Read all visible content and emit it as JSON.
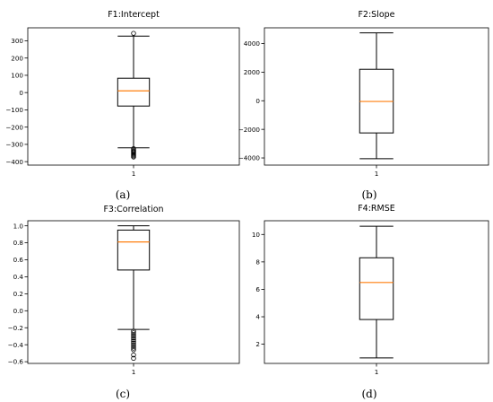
{
  "chart_data": [
    {
      "type": "box",
      "title": "F1:Intercept",
      "panel_label": "(a)",
      "categories": [
        "1"
      ],
      "ylim": [
        -420,
        375
      ],
      "yticks": [
        -400,
        -300,
        -200,
        -100,
        0,
        100,
        200,
        300
      ],
      "ytick_labels": [
        "−400",
        "−300",
        "−200",
        "−100",
        "0",
        "100",
        "200",
        "300"
      ],
      "box": {
        "whisker_low": -320,
        "q1": -78,
        "median": 10,
        "q3": 83,
        "whisker_high": 327
      },
      "outliers": [
        343,
        -325,
        -332,
        -338,
        -343,
        -349,
        -355,
        -361,
        -367,
        -373
      ],
      "colors": {
        "median": "#ff7f0e",
        "box": "#000000"
      }
    },
    {
      "type": "box",
      "title": "F2:Slope",
      "panel_label": "(b)",
      "categories": [
        "1"
      ],
      "ylim": [
        -4500,
        5100
      ],
      "yticks": [
        -4000,
        -2000,
        0,
        2000,
        4000
      ],
      "ytick_labels": [
        "−4000",
        "−2000",
        "0",
        "2000",
        "4000"
      ],
      "box": {
        "whisker_low": -4050,
        "q1": -2250,
        "median": -50,
        "q3": 2200,
        "whisker_high": 4750
      },
      "outliers": [],
      "colors": {
        "median": "#ff7f0e",
        "box": "#000000"
      }
    },
    {
      "type": "box",
      "title": "F3:Correlation",
      "panel_label": "(c)",
      "categories": [
        "1"
      ],
      "ylim": [
        -0.62,
        1.06
      ],
      "yticks": [
        -0.6,
        -0.4,
        -0.2,
        0.0,
        0.2,
        0.4,
        0.6,
        0.8,
        1.0
      ],
      "ytick_labels": [
        "−0.6",
        "−0.4",
        "−0.2",
        "0.0",
        "0.2",
        "0.4",
        "0.6",
        "0.8",
        "1.0"
      ],
      "box": {
        "whisker_low": -0.22,
        "q1": 0.48,
        "median": 0.81,
        "q3": 0.95,
        "whisker_high": 1.0
      },
      "outliers": [
        -0.24,
        -0.26,
        -0.28,
        -0.3,
        -0.32,
        -0.34,
        -0.36,
        -0.38,
        -0.4,
        -0.42,
        -0.44,
        -0.46,
        -0.52,
        -0.56
      ],
      "colors": {
        "median": "#ff7f0e",
        "box": "#000000"
      }
    },
    {
      "type": "box",
      "title": "F4:RMSE",
      "panel_label": "(d)",
      "categories": [
        "1"
      ],
      "ylim": [
        0.6,
        11.0
      ],
      "yticks": [
        2,
        4,
        6,
        8,
        10
      ],
      "ytick_labels": [
        "2",
        "4",
        "6",
        "8",
        "10"
      ],
      "box": {
        "whisker_low": 1.0,
        "q1": 3.8,
        "median": 6.5,
        "q3": 8.3,
        "whisker_high": 10.6
      },
      "outliers": [],
      "colors": {
        "median": "#ff7f0e",
        "box": "#000000"
      }
    }
  ]
}
